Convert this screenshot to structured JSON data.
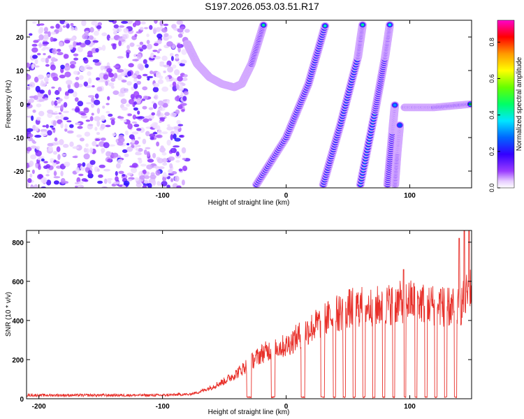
{
  "figure": {
    "title": "S197.2026.053.03.51.R17"
  },
  "chart_data": [
    {
      "type": "heatmap",
      "xlabel": "Height of straight line (km)",
      "ylabel": "Frequency (Hz)",
      "xlim": [
        -210,
        150
      ],
      "ylim": [
        -25,
        25
      ],
      "xticks": [
        -200,
        -100,
        0,
        100
      ],
      "yticks": [
        -20,
        -10,
        0,
        10,
        20
      ],
      "colorbar": {
        "label": "Normalized spectral amplitude",
        "range": [
          0,
          0.92
        ],
        "ticks": [
          0.0,
          0.2,
          0.4,
          0.6,
          0.8
        ]
      },
      "noise_region": [
        -210,
        -80
      ],
      "ridges": [
        {
          "name": "curved",
          "x": [
            -80,
            -72,
            -62,
            -52,
            -42,
            -36,
            -28,
            -18
          ],
          "y": [
            18,
            12,
            8,
            6,
            5,
            6,
            12,
            24
          ],
          "peak": 0.45
        },
        {
          "name": "line-1",
          "x": [
            -24,
            0,
            18,
            32
          ],
          "y": [
            -24,
            -10,
            6,
            24
          ],
          "peak": 0.5
        },
        {
          "name": "line-2",
          "x": [
            30,
            44,
            58,
            62
          ],
          "y": [
            -24,
            -6,
            14,
            24
          ],
          "peak": 0.45
        },
        {
          "name": "line-3",
          "x": [
            60,
            72,
            80,
            84
          ],
          "y": [
            -24,
            -2,
            14,
            24
          ],
          "peak": 0.45
        },
        {
          "name": "line-4",
          "x": [
            82,
            86,
            88
          ],
          "y": [
            -24,
            -8,
            0
          ],
          "peak": 0.4
        },
        {
          "name": "line-5",
          "x": [
            88,
            90,
            92
          ],
          "y": [
            -24,
            -14,
            -6
          ],
          "peak": 0.3
        },
        {
          "name": "flat",
          "x": [
            96,
            120,
            150
          ],
          "y": [
            -1,
            -1,
            0
          ],
          "peak": 0.6
        }
      ]
    },
    {
      "type": "line",
      "xlabel": "Height of straight line (km)",
      "ylabel": "SNR (10 * v/v)",
      "xlim": [
        -210,
        150
      ],
      "ylim": [
        0,
        860
      ],
      "xticks": [
        -200,
        -100,
        0,
        100
      ],
      "yticks": [
        0,
        200,
        400,
        600,
        800
      ],
      "series": [
        {
          "name": "SNR",
          "color": "#e8302a",
          "x": [
            -210,
            -100,
            -80,
            -70,
            -60,
            -50,
            -40,
            -30,
            -20,
            -10,
            0,
            10,
            20,
            30,
            40,
            50,
            60,
            70,
            80,
            90,
            100,
            110,
            120,
            130,
            140,
            145,
            150
          ],
          "y": [
            15,
            15,
            20,
            35,
            60,
            90,
            130,
            180,
            230,
            260,
            270,
            320,
            360,
            400,
            430,
            460,
            470,
            470,
            480,
            490,
            500,
            490,
            480,
            470,
            460,
            520,
            560
          ],
          "dropouts": [
            [
              -32,
              -28
            ],
            [
              -12,
              -9
            ],
            [
              12,
              15
            ],
            [
              28,
              31
            ],
            [
              38,
              40
            ],
            [
              46,
              48
            ],
            [
              54,
              56
            ],
            [
              62,
              64
            ],
            [
              70,
              72
            ],
            [
              78,
              80
            ],
            [
              86,
              88
            ],
            [
              95,
              97
            ],
            [
              104,
              106
            ],
            [
              112,
              114
            ],
            [
              120,
              122
            ],
            [
              128,
              130
            ],
            [
              136,
              138
            ]
          ],
          "spikes": [
            [
              95,
              660
            ],
            [
              125,
              560
            ],
            [
              140,
              820
            ],
            [
              144,
              860
            ],
            [
              148,
              860
            ]
          ]
        }
      ]
    }
  ]
}
